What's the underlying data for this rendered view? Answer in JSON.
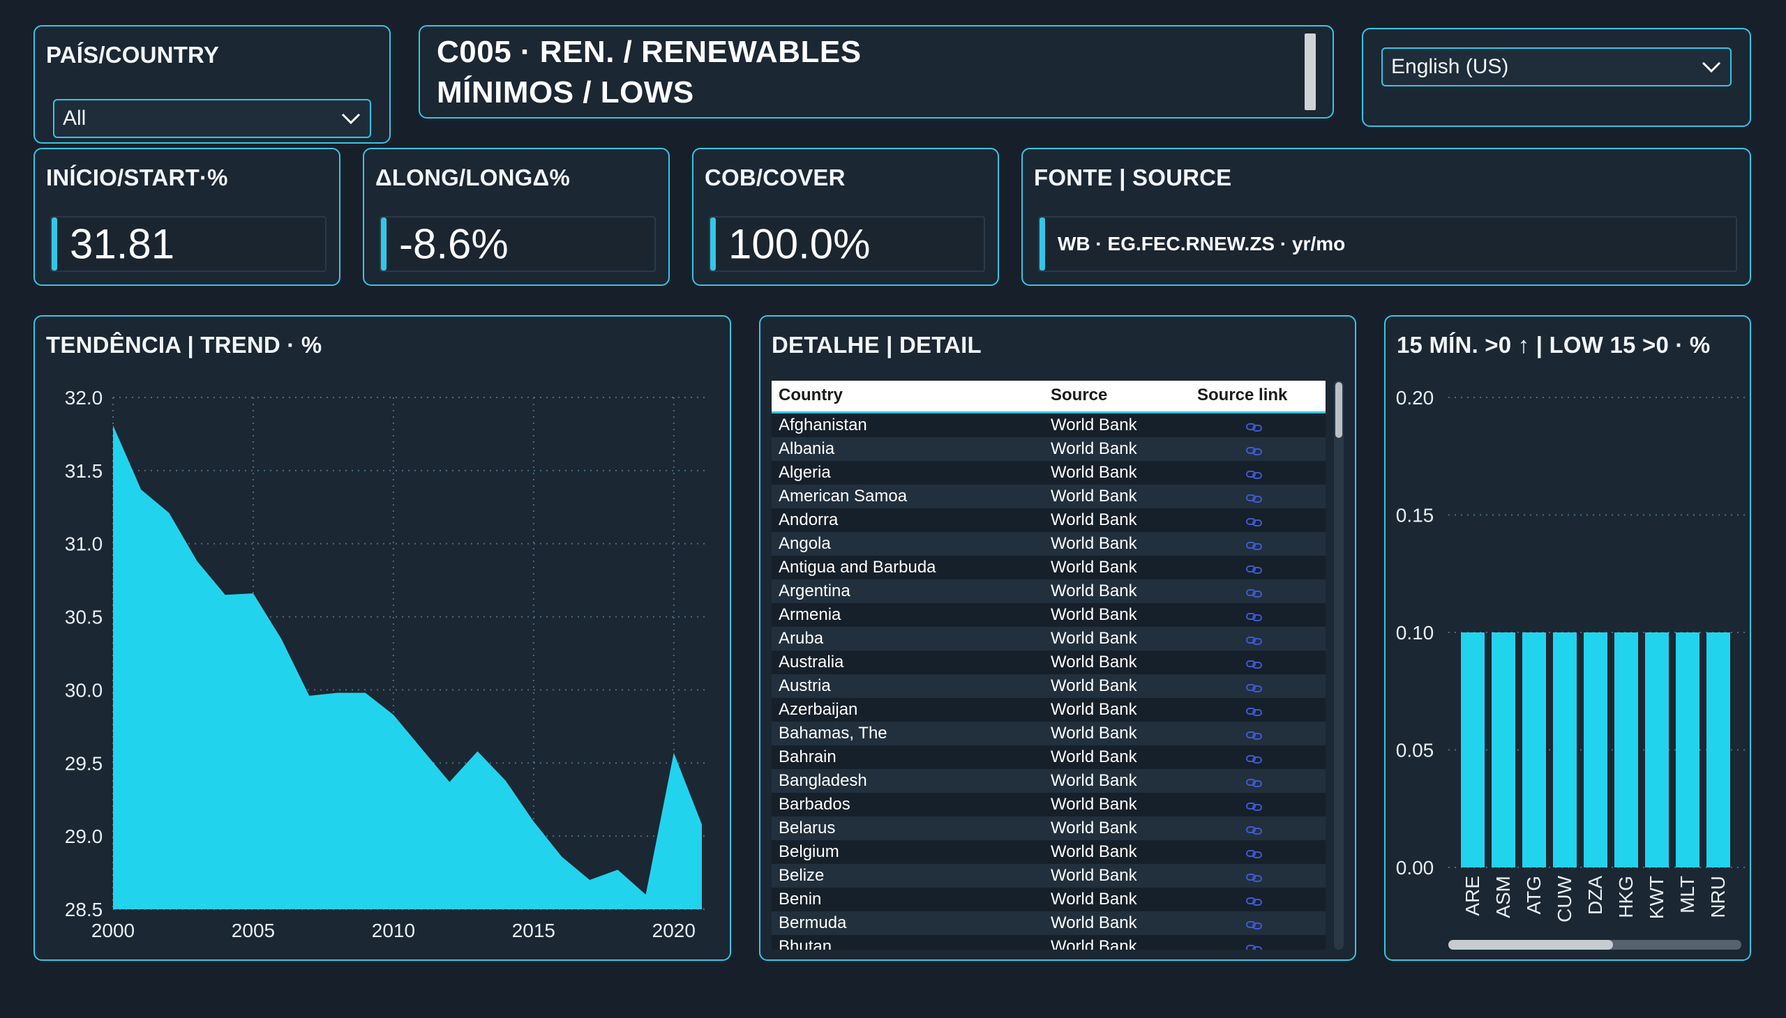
{
  "country_filter": {
    "label": "PAÍS/COUNTRY",
    "value": "All"
  },
  "title": {
    "line1": "C005 · REN. / RENEWABLES",
    "line2": "MÍNIMOS / LOWS"
  },
  "language": {
    "value": "English (US)"
  },
  "kpis": [
    {
      "label": "INÍCIO/START·%",
      "value": "31.81"
    },
    {
      "label": "ΔLONG/LONGΔ%",
      "value": "-8.6%"
    },
    {
      "label": "COB/COVER",
      "value": "100.0%"
    }
  ],
  "source_card": {
    "label": "FONTE | SOURCE",
    "value": "WB · EG.FEC.RNEW.ZS · yr/mo"
  },
  "trend_panel": {
    "title": "TENDÊNCIA | TREND · %"
  },
  "detail_panel": {
    "title": "DETALHE | DETAIL",
    "columns": [
      "Country",
      "Source",
      "Source link"
    ],
    "rows": [
      [
        "Afghanistan",
        "World Bank"
      ],
      [
        "Albania",
        "World Bank"
      ],
      [
        "Algeria",
        "World Bank"
      ],
      [
        "American Samoa",
        "World Bank"
      ],
      [
        "Andorra",
        "World Bank"
      ],
      [
        "Angola",
        "World Bank"
      ],
      [
        "Antigua and Barbuda",
        "World Bank"
      ],
      [
        "Argentina",
        "World Bank"
      ],
      [
        "Armenia",
        "World Bank"
      ],
      [
        "Aruba",
        "World Bank"
      ],
      [
        "Australia",
        "World Bank"
      ],
      [
        "Austria",
        "World Bank"
      ],
      [
        "Azerbaijan",
        "World Bank"
      ],
      [
        "Bahamas, The",
        "World Bank"
      ],
      [
        "Bahrain",
        "World Bank"
      ],
      [
        "Bangladesh",
        "World Bank"
      ],
      [
        "Barbados",
        "World Bank"
      ],
      [
        "Belarus",
        "World Bank"
      ],
      [
        "Belgium",
        "World Bank"
      ],
      [
        "Belize",
        "World Bank"
      ],
      [
        "Benin",
        "World Bank"
      ],
      [
        "Bermuda",
        "World Bank"
      ],
      [
        "Bhutan",
        "World Bank"
      ]
    ],
    "link_icon": "link-icon"
  },
  "lows_panel": {
    "title": "15 MÍN. >0 ↑ | LOW 15 >0 · %"
  },
  "colors": {
    "accent": "#35c6e6",
    "fill": "#22d3ee",
    "background": "#17202a",
    "panel": "#1b2733"
  },
  "chart_data": [
    {
      "type": "area",
      "title": "TENDÊNCIA | TREND · %",
      "x": [
        2000,
        2001,
        2002,
        2003,
        2004,
        2005,
        2006,
        2007,
        2008,
        2009,
        2010,
        2011,
        2012,
        2013,
        2014,
        2015,
        2016,
        2017,
        2018,
        2019,
        2020,
        2021
      ],
      "values": [
        31.81,
        31.37,
        31.21,
        30.88,
        30.65,
        30.66,
        30.35,
        29.96,
        29.98,
        29.98,
        29.83,
        29.6,
        29.37,
        29.58,
        29.38,
        29.1,
        28.86,
        28.7,
        28.77,
        28.6,
        29.57,
        29.08
      ],
      "xticks": [
        2000,
        2005,
        2010,
        2015,
        2020
      ],
      "yticks": [
        "28.5",
        "29.0",
        "29.5",
        "30.0",
        "30.5",
        "31.0",
        "31.5",
        "32.0"
      ],
      "xlim": [
        2000,
        2021
      ],
      "ylim": [
        28.5,
        32.0
      ],
      "grid": true
    },
    {
      "type": "bar",
      "title": "15 MÍN. >0 ↑ | LOW 15 >0 · %",
      "categories": [
        "ARE",
        "ASM",
        "ATG",
        "CUW",
        "DZA",
        "HKG",
        "KWT",
        "MLT",
        "NRU"
      ],
      "values": [
        0.1,
        0.1,
        0.1,
        0.1,
        0.1,
        0.1,
        0.1,
        0.1,
        0.1
      ],
      "yticks": [
        "0.00",
        "0.05",
        "0.10",
        "0.15",
        "0.20"
      ],
      "ylim": [
        0,
        0.2
      ],
      "grid": true
    }
  ]
}
